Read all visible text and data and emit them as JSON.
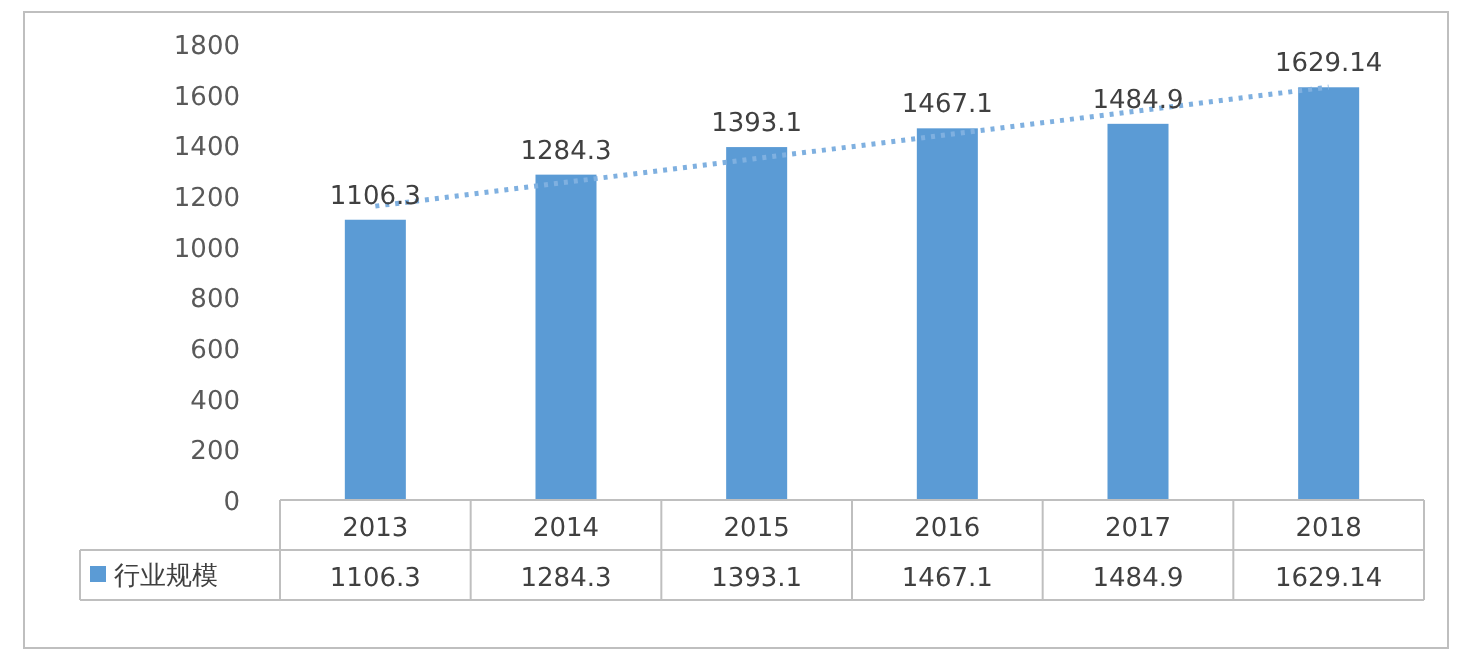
{
  "chart_data": {
    "type": "bar",
    "categories": [
      "2013",
      "2014",
      "2015",
      "2016",
      "2017",
      "2018"
    ],
    "series": [
      {
        "name": "行业规模",
        "color": "#5b9bd5",
        "values": [
          1106.3,
          1284.3,
          1393.1,
          1467.1,
          1484.9,
          1629.14
        ],
        "value_labels": [
          "1106.3",
          "1284.3",
          "1393.1",
          "1467.1",
          "1484.9",
          "1629.14"
        ]
      },
      {
        "type": "line",
        "values": [
          1160,
          null,
          null,
          null,
          null,
          1630
        ],
        "color": "#7fb0e0",
        "line_style": "dotted"
      }
    ],
    "ylim": [
      0,
      1800
    ],
    "yticks": [
      0,
      200,
      400,
      600,
      800,
      1000,
      1200,
      1400,
      1600,
      1800
    ],
    "legend": "bottom left"
  }
}
